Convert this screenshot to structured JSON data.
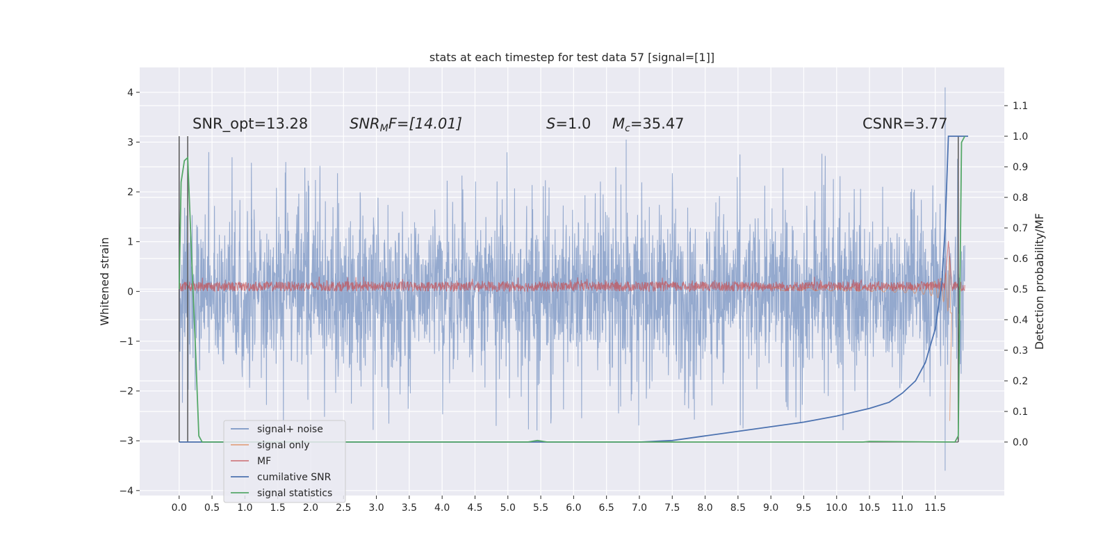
{
  "chart_data": {
    "type": "line",
    "title": "stats at each timestep for test data 57 [signal=[1]]",
    "ylabel_left": "Whitened strain",
    "ylabel_right": "Detection probability/MF",
    "xlim": [
      -0.6,
      12.55
    ],
    "ylim_left": [
      -4.1,
      4.5
    ],
    "ylim_right": [
      -0.175,
      1.225
    ],
    "x_ticks": [
      0.0,
      0.5,
      1.0,
      1.5,
      2.0,
      2.5,
      3.0,
      3.5,
      4.0,
      4.5,
      5.0,
      5.5,
      6.0,
      6.5,
      7.0,
      7.5,
      8.0,
      8.5,
      9.0,
      9.5,
      10.0,
      10.5,
      11.0,
      11.5
    ],
    "x_tick_labels": [
      "0.0",
      "0.5",
      "1.0",
      "1.5",
      "2.0",
      "2.5",
      "3.0",
      "3.5",
      "4.0",
      "4.5",
      "5.0",
      "5.5",
      "6.0",
      "6.5",
      "7.0",
      "7.5",
      "8.0",
      "8.5",
      "9.0",
      "9.5",
      "10.0",
      "10.5",
      "11.0",
      "11.5"
    ],
    "y_left_ticks": [
      -4,
      -3,
      -2,
      -1,
      0,
      1,
      2,
      3,
      4
    ],
    "y_left_tick_labels": [
      "−4",
      "−3",
      "−2",
      "−1",
      "0",
      "1",
      "2",
      "3",
      "4"
    ],
    "y_right_ticks": [
      0.0,
      0.1,
      0.2,
      0.3,
      0.4,
      0.5,
      0.6,
      0.7,
      0.8,
      0.9,
      1.0,
      1.1
    ],
    "y_right_tick_labels": [
      "0.0",
      "0.1",
      "0.2",
      "0.3",
      "0.4",
      "0.5",
      "0.6",
      "0.7",
      "0.8",
      "0.9",
      "1.0",
      "1.1"
    ],
    "grid": true,
    "legend_position": "lower-left",
    "annotations": {
      "snr_opt": "SNR_opt=13.28",
      "snr_mf_italic": "SNR",
      "snr_mf_sub": "M",
      "snr_mf_rest": "F=[14.01]",
      "s_italic": "S",
      "s_rest": "=1.0",
      "mc_italic": "M",
      "mc_sub": "c",
      "mc_rest": "=35.47",
      "csnr": "CSNR=3.77"
    },
    "series": [
      {
        "name": "signal+ noise",
        "axis": "left",
        "color": "#4c72b0",
        "opacity": 0.55,
        "description": "whitened noisy strain, amplitude roughly within ±1.5 with spikes to about ±3, spanning x 0.0–11.95",
        "envelope": {
          "x": [
            0.0,
            11.95
          ],
          "typical_amplitude": 1.4,
          "spike_max": 2.9,
          "spike_min": -2.9
        },
        "extremes": [
          {
            "x": 11.65,
            "y": 4.1
          },
          {
            "x": 11.65,
            "y": -3.6
          },
          {
            "x": 6.8,
            "y": 3.05
          }
        ]
      },
      {
        "name": "signal only",
        "axis": "left",
        "color": "#dd8452",
        "opacity": 0.6,
        "description": "chirp signal growing in amplitude toward merger near x ≈ 11.7",
        "points": [
          [
            9.5,
            0.05
          ],
          [
            10.0,
            0.08
          ],
          [
            10.5,
            0.15
          ],
          [
            11.0,
            0.3
          ],
          [
            11.3,
            0.5
          ],
          [
            11.5,
            0.7
          ],
          [
            11.65,
            1.0
          ],
          [
            11.72,
            -2.6
          ]
        ]
      },
      {
        "name": "MF",
        "axis": "left",
        "color": "#c44e52",
        "opacity": 0.7,
        "description": "matched-filter band around 0.0–0.2, spikes to ~1.0 near x 11.7",
        "band": [
          0.0,
          0.2
        ],
        "peak": {
          "x": 11.7,
          "y": 1.0
        }
      },
      {
        "name": "cumilative SNR",
        "axis": "right",
        "color": "#4c72b0",
        "opacity": 1.0,
        "points": [
          [
            0.0,
            0.0
          ],
          [
            7.0,
            0.0
          ],
          [
            7.5,
            0.005
          ],
          [
            8.0,
            0.02
          ],
          [
            8.5,
            0.035
          ],
          [
            9.0,
            0.05
          ],
          [
            9.5,
            0.065
          ],
          [
            10.0,
            0.085
          ],
          [
            10.5,
            0.11
          ],
          [
            10.8,
            0.13
          ],
          [
            11.0,
            0.16
          ],
          [
            11.2,
            0.2
          ],
          [
            11.35,
            0.26
          ],
          [
            11.5,
            0.37
          ],
          [
            11.6,
            0.52
          ],
          [
            11.65,
            0.7
          ],
          [
            11.7,
            1.0
          ],
          [
            12.0,
            1.0
          ]
        ]
      },
      {
        "name": "signal statistics",
        "axis": "right",
        "color": "#55a868",
        "opacity": 1.0,
        "points": [
          [
            0.0,
            0.5
          ],
          [
            0.03,
            0.85
          ],
          [
            0.08,
            0.92
          ],
          [
            0.13,
            0.93
          ],
          [
            0.2,
            0.55
          ],
          [
            0.25,
            0.3
          ],
          [
            0.3,
            0.02
          ],
          [
            0.35,
            0.0
          ],
          [
            5.3,
            0.0
          ],
          [
            5.45,
            0.005
          ],
          [
            5.6,
            0.0
          ],
          [
            10.4,
            0.0
          ],
          [
            10.5,
            0.002
          ],
          [
            11.8,
            0.0
          ],
          [
            11.85,
            0.02
          ],
          [
            11.9,
            0.98
          ],
          [
            11.95,
            1.0
          ]
        ]
      }
    ],
    "step_lines": {
      "color": "#555555",
      "axis": "right",
      "description": "binary detection indicators (dark grey vertical steps)",
      "segments": [
        [
          [
            0.0,
            0.0
          ],
          [
            0.0,
            1.0
          ]
        ],
        [
          [
            0.13,
            0.0
          ],
          [
            0.13,
            1.0
          ]
        ],
        [
          [
            11.85,
            0.0
          ],
          [
            11.85,
            1.0
          ]
        ]
      ]
    }
  }
}
